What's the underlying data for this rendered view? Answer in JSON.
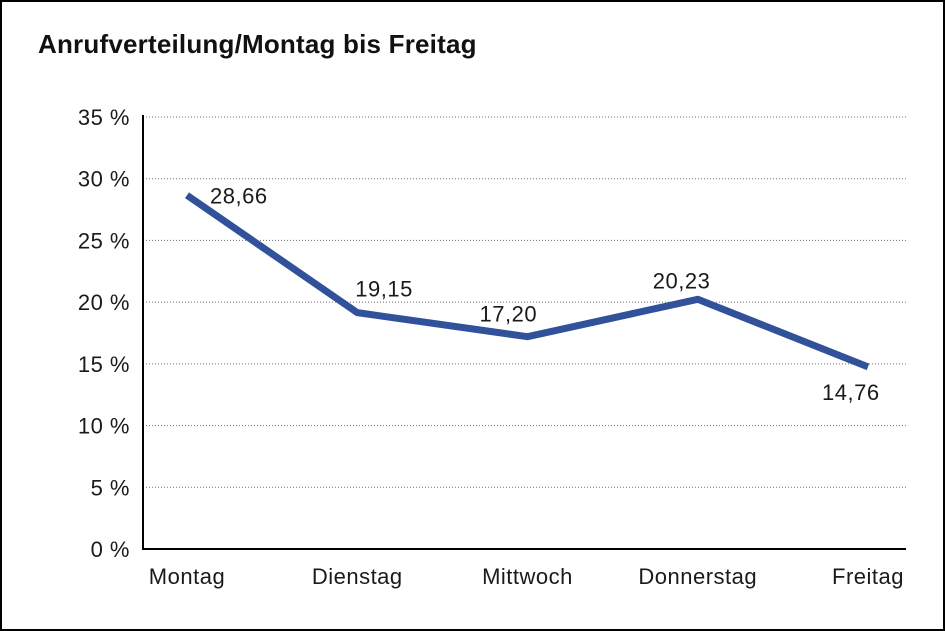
{
  "window": {
    "background_color": "#ffffff",
    "border_color": "#000000"
  },
  "header": {
    "title": "Anrufverteilung/Montag bis Freitag"
  },
  "chart_data": {
    "type": "line",
    "title": "Anrufverteilung/Montag bis Freitag",
    "categories": [
      "Montag",
      "Dienstag",
      "Mittwoch",
      "Donnerstag",
      "Freitag"
    ],
    "series": [
      {
        "name": "Anrufverteilung",
        "values": [
          28.66,
          19.15,
          17.2,
          20.23,
          14.76
        ],
        "point_labels": [
          "28,66",
          "19,15",
          "17,20",
          "20,23",
          "14,76"
        ],
        "color": "#31519B"
      }
    ],
    "xlabel": "",
    "ylabel": "",
    "ylim": [
      0,
      35
    ],
    "y_ticks": [
      0,
      5,
      10,
      15,
      20,
      25,
      30,
      35
    ],
    "y_tick_labels": [
      "0 %",
      "5 %",
      "10 %",
      "15 %",
      "20 %",
      "25 %",
      "30 %",
      "35 %"
    ],
    "unit": "%",
    "grid": "horizontal-dotted",
    "legend_position": "none",
    "text_color": "#1a1a1a"
  }
}
